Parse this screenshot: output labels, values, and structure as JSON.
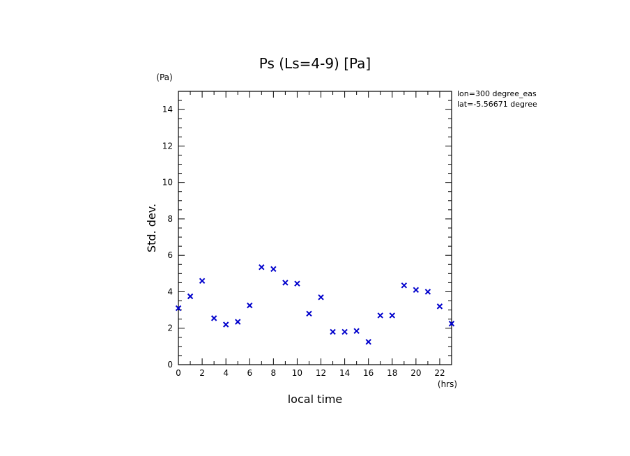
{
  "chart_data": {
    "type": "scatter",
    "title": "Ps (Ls=4-9) [Pa]",
    "xlabel": "local time",
    "ylabel": "Std. dev.",
    "x_unit": "(hrs)",
    "y_unit": "(Pa)",
    "xlim": [
      0,
      23
    ],
    "ylim": [
      0,
      15
    ],
    "x_ticks": [
      "0",
      "2",
      "4",
      "6",
      "8",
      "10",
      "12",
      "14",
      "16",
      "18",
      "20",
      "22"
    ],
    "y_ticks": [
      "0",
      "2",
      "4",
      "6",
      "8",
      "10",
      "12",
      "14"
    ],
    "annotations": [
      "lon=300 degree_eas",
      "lat=-5.56671 degree"
    ],
    "marker_color": "#0000cc",
    "marker": "x",
    "grid": false,
    "x": [
      0,
      1,
      2,
      3,
      4,
      5,
      6,
      7,
      8,
      9,
      10,
      11,
      12,
      13,
      14,
      15,
      16,
      17,
      18,
      19,
      20,
      21,
      22,
      23
    ],
    "y": [
      3.1,
      3.75,
      4.6,
      2.55,
      2.2,
      2.35,
      3.25,
      5.35,
      5.25,
      4.5,
      4.45,
      2.8,
      3.7,
      1.8,
      1.8,
      1.85,
      1.25,
      2.7,
      2.7,
      4.35,
      4.1,
      4.0,
      3.2,
      2.25
    ]
  }
}
